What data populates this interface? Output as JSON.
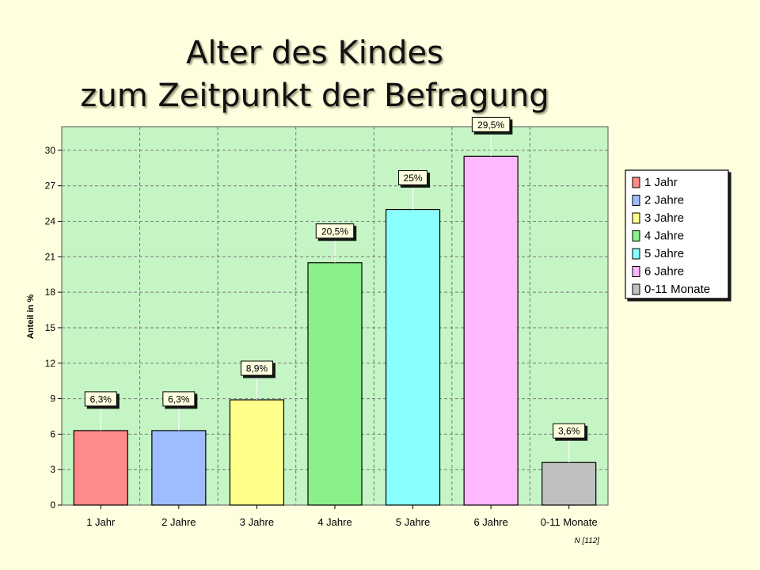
{
  "chart_data": {
    "type": "bar",
    "title_line1": "Alter des Kindes",
    "title_line2": "zum Zeitpunkt der Befragung",
    "ylabel": "Anteil in %",
    "ylim": [
      0,
      32
    ],
    "yticks": [
      0,
      3,
      6,
      9,
      12,
      15,
      18,
      21,
      24,
      27,
      30
    ],
    "categories": [
      "1 Jahr",
      "2 Jahre",
      "3 Jahre",
      "4 Jahre",
      "5 Jahre",
      "6 Jahre",
      "0-11 Monate"
    ],
    "values": [
      6.3,
      6.3,
      8.9,
      20.5,
      25,
      29.5,
      3.6
    ],
    "data_labels": [
      "6,3%",
      "6,3%",
      "8,9%",
      "20,5%",
      "25%",
      "29,5%",
      "3,6%"
    ],
    "colors": [
      "#ff8a8a",
      "#9ebdff",
      "#ffff8a",
      "#8af08a",
      "#8affff",
      "#ffb8ff",
      "#c0c0c0"
    ],
    "legend": [
      "1 Jahr",
      "2 Jahre",
      "3 Jahre",
      "4 Jahre",
      "5 Jahre",
      "6 Jahre",
      "0-11 Monate"
    ],
    "legend_position": "right",
    "grid": true,
    "plot_background": "#c5f5c5",
    "note": "N [112]"
  }
}
